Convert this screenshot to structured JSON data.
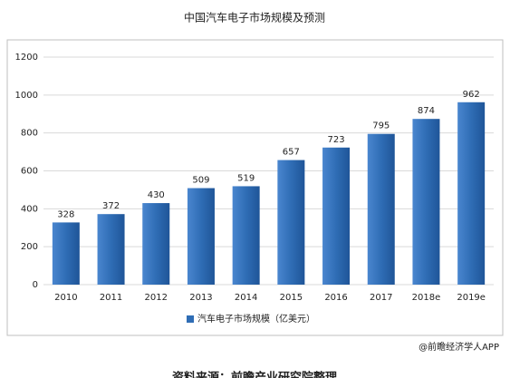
{
  "chart_data": {
    "type": "bar",
    "title": "中国汽车电子市场规模及预测",
    "categories": [
      "2010",
      "2011",
      "2012",
      "2013",
      "2014",
      "2015",
      "2016",
      "2017",
      "2018e",
      "2019e"
    ],
    "series": [
      {
        "name": "汽车电子市场规模（亿美元）",
        "color": "#2f6db5",
        "values": [
          328,
          372,
          430,
          509,
          519,
          657,
          723,
          795,
          874,
          962
        ]
      }
    ],
    "ylim": [
      0,
      1200
    ],
    "yticks": [
      0,
      200,
      400,
      600,
      800,
      1000,
      1200
    ],
    "grid": true,
    "legend": "bottom",
    "annotations": [
      "@前瞻经济学人APP",
      "资料来源：前瞻产业研究院整理"
    ]
  }
}
